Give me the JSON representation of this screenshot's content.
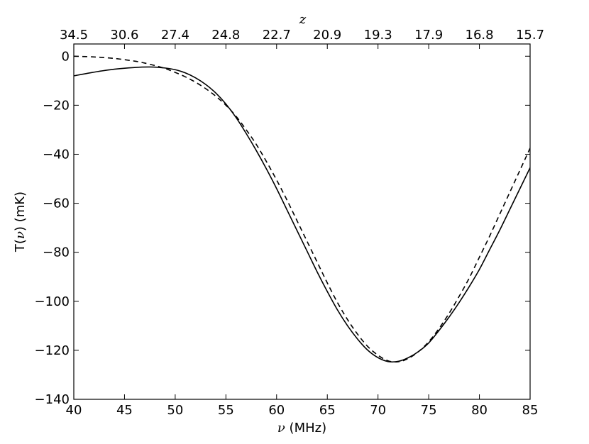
{
  "chart_data": {
    "type": "line",
    "xlabel_symbol": "ν",
    "xlabel_unit": " (MHz)",
    "ylabel_prefix": "T(",
    "ylabel_symbol": "ν",
    "ylabel_suffix": ") (mK)",
    "top_axis_label": "z",
    "xlim": [
      40,
      85
    ],
    "ylim": [
      -140,
      5
    ],
    "x_ticks": [
      40,
      45,
      50,
      55,
      60,
      65,
      70,
      75,
      80,
      85
    ],
    "y_ticks": [
      0,
      -20,
      -40,
      -60,
      -80,
      -100,
      -120,
      -140
    ],
    "y_tick_labels": [
      "0",
      "−20",
      "−40",
      "−60",
      "−80",
      "−100",
      "−120",
      "−140"
    ],
    "top_ticks": [
      {
        "x": 40,
        "label": "34.5"
      },
      {
        "x": 45,
        "label": "30.6"
      },
      {
        "x": 50,
        "label": "27.4"
      },
      {
        "x": 55,
        "label": "24.8"
      },
      {
        "x": 60,
        "label": "22.7"
      },
      {
        "x": 65,
        "label": "20.9"
      },
      {
        "x": 70,
        "label": "19.3"
      },
      {
        "x": 75,
        "label": "17.9"
      },
      {
        "x": 80,
        "label": "16.8"
      },
      {
        "x": 85,
        "label": "15.7"
      }
    ],
    "grid": false,
    "series": [
      {
        "style": "solid",
        "color": "#000000",
        "x": [
          40,
          42,
          44,
          46,
          47.5,
          49,
          50,
          51,
          52,
          53,
          54,
          55,
          56,
          57,
          58,
          59,
          60,
          61,
          62,
          63,
          64,
          65,
          66,
          67,
          68,
          69,
          70,
          71,
          72,
          73,
          74,
          75,
          76,
          77,
          78,
          79,
          80,
          81,
          82,
          83,
          84,
          85
        ],
        "y": [
          -8,
          -6.5,
          -5.3,
          -4.6,
          -4.4,
          -4.8,
          -5.5,
          -6.8,
          -8.8,
          -11.5,
          -15,
          -19.5,
          -25,
          -31.5,
          -38.5,
          -46,
          -54,
          -62.5,
          -71,
          -79.5,
          -88,
          -96,
          -103.5,
          -110,
          -115.5,
          -120,
          -123,
          -124.6,
          -124.5,
          -123,
          -120.5,
          -117,
          -112,
          -106.5,
          -100.5,
          -94,
          -87,
          -79,
          -71,
          -62.5,
          -54,
          -45.5
        ]
      },
      {
        "style": "dashed",
        "color": "#000000",
        "x": [
          40,
          42,
          44,
          46,
          47,
          48,
          49,
          50,
          51,
          52,
          53,
          54,
          55,
          56,
          57,
          58,
          59,
          60,
          61,
          62,
          63,
          64,
          65,
          66,
          67,
          68,
          69,
          70,
          71,
          72,
          73,
          74,
          75,
          76,
          77,
          78,
          79,
          80,
          81,
          82,
          83,
          84,
          85
        ],
        "y": [
          0,
          -0.3,
          -0.9,
          -2,
          -2.8,
          -3.8,
          -5,
          -6.6,
          -8.4,
          -10.6,
          -13.2,
          -16.3,
          -20,
          -24.5,
          -30,
          -36,
          -43,
          -50.5,
          -58.5,
          -67,
          -75.5,
          -84,
          -92.5,
          -100.5,
          -107.5,
          -113.5,
          -118.5,
          -122,
          -124.3,
          -124.7,
          -123.3,
          -120.5,
          -116.5,
          -111.2,
          -105,
          -98,
          -90.5,
          -82,
          -73.5,
          -64.5,
          -55.5,
          -46.5,
          -37.5
        ]
      }
    ]
  }
}
